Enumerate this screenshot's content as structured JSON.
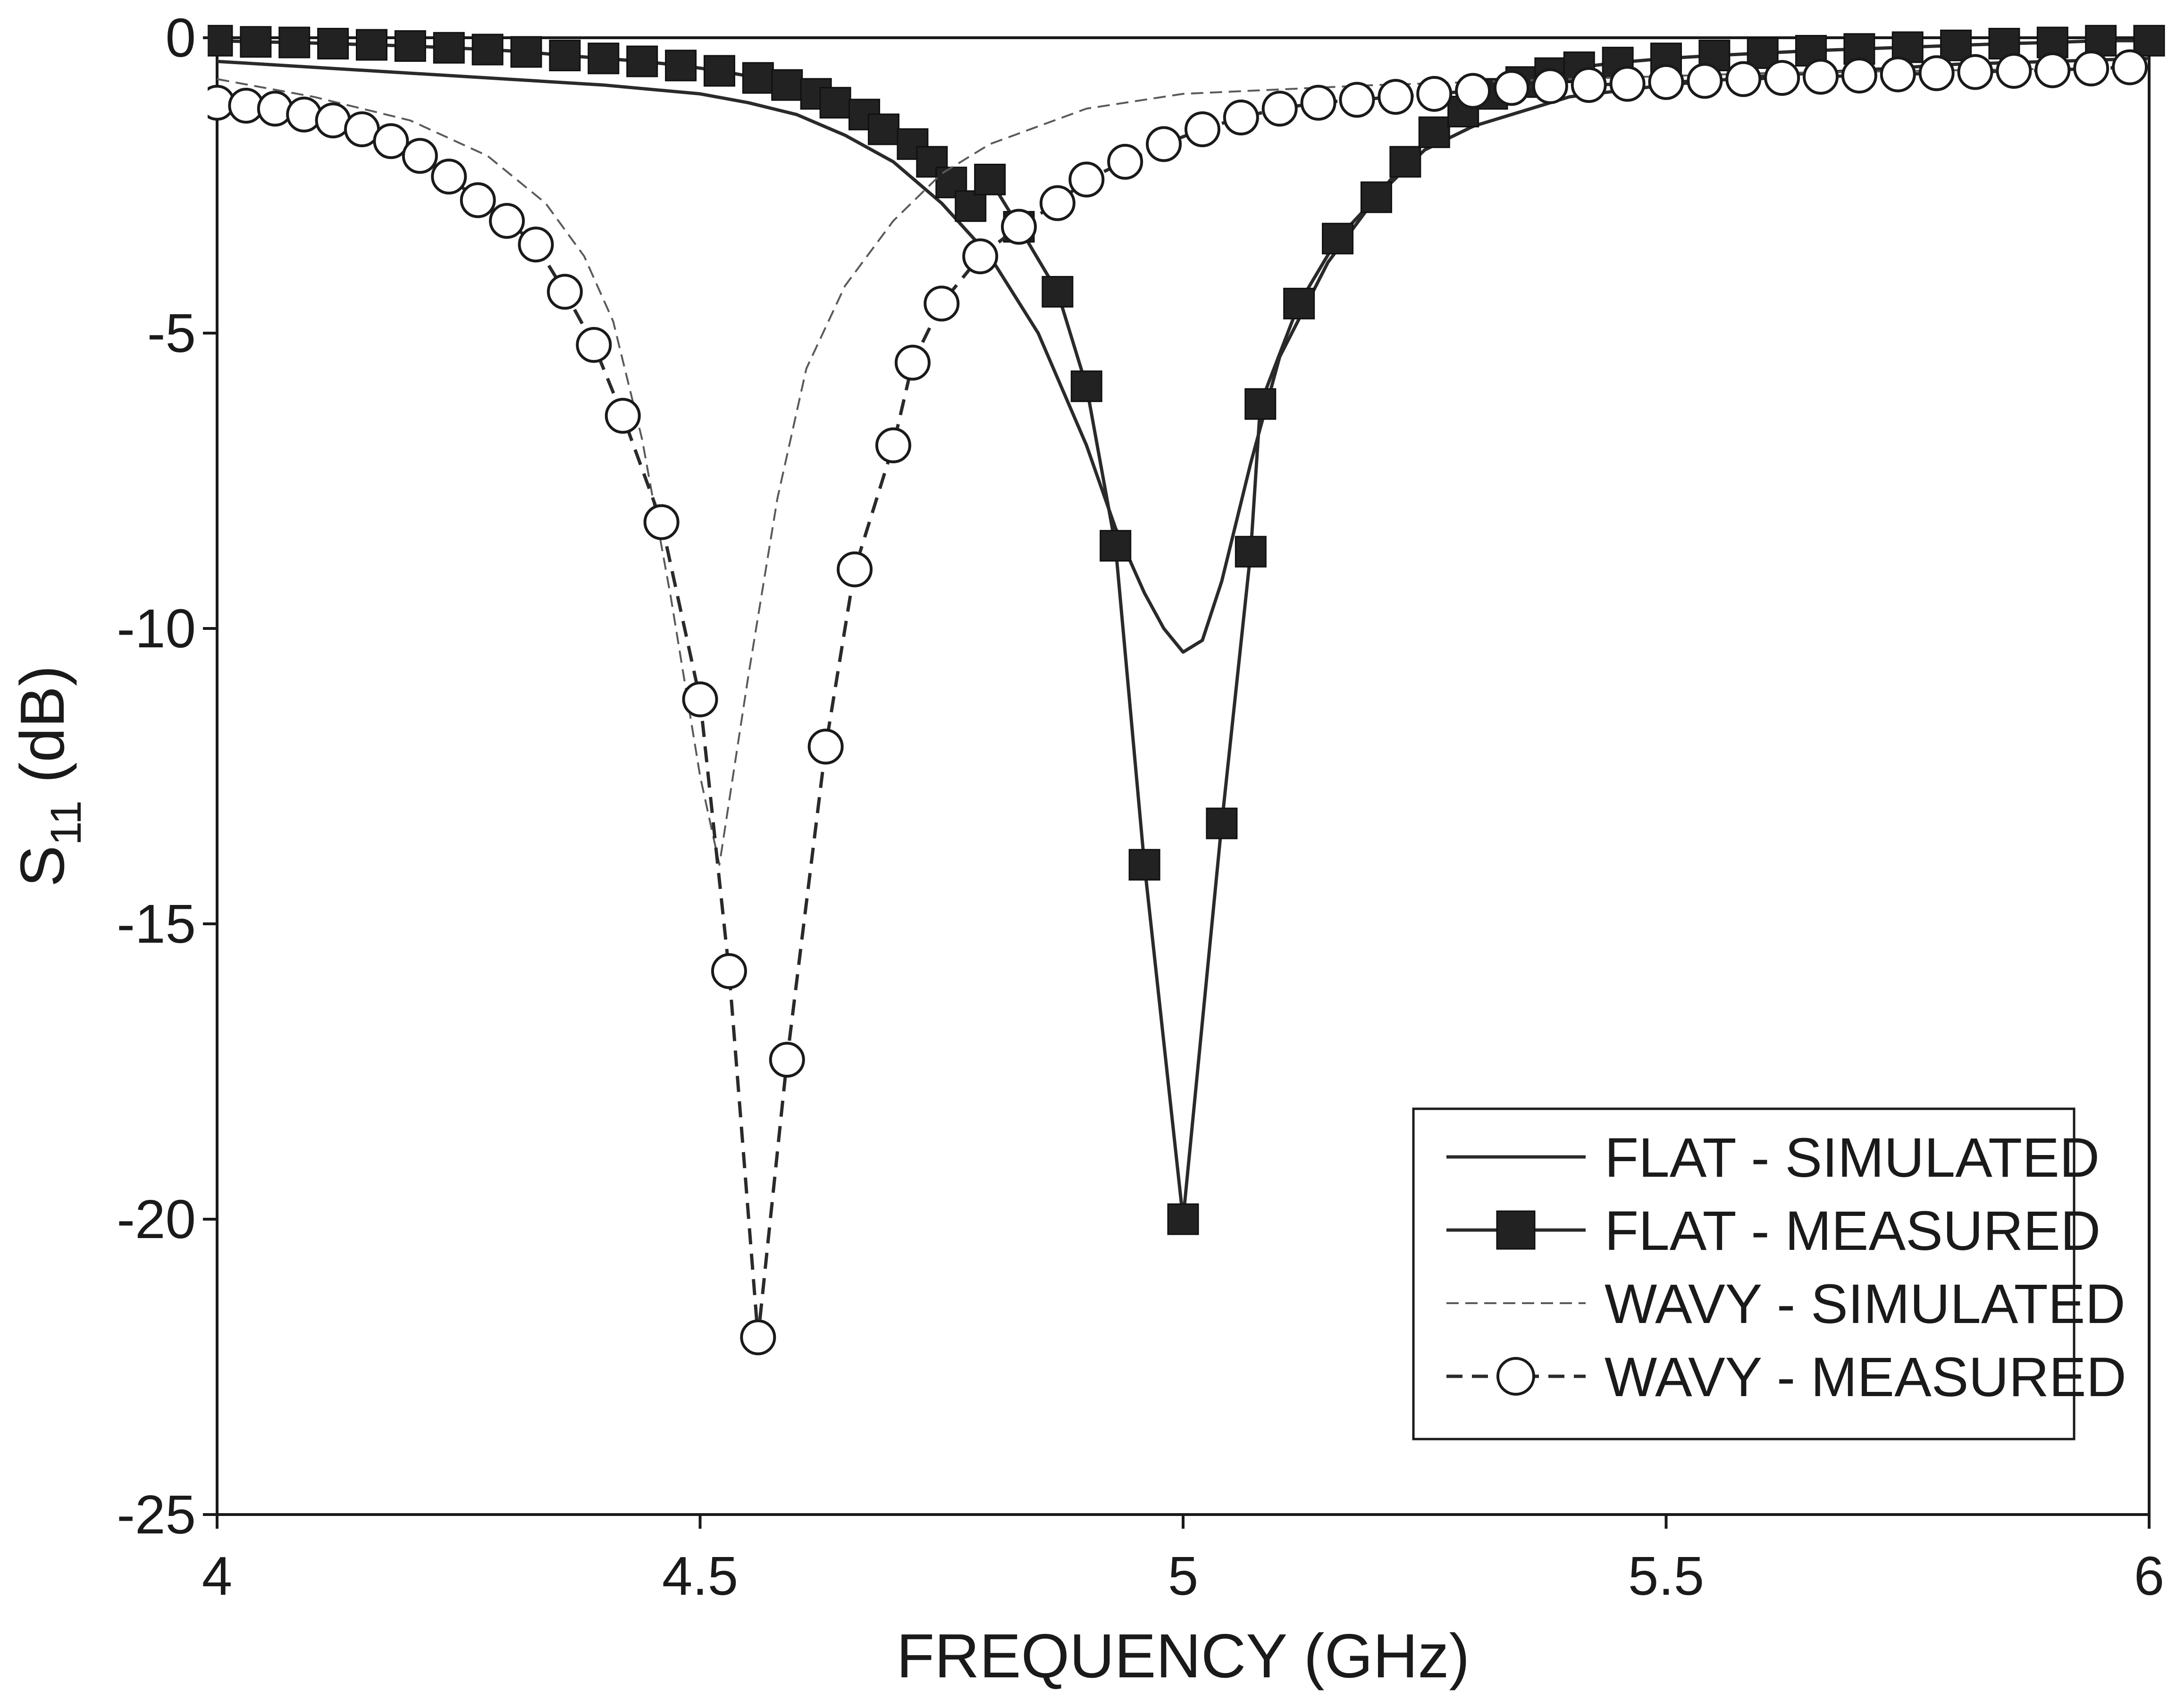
{
  "chart_data": {
    "type": "line",
    "title": "",
    "xlabel": "FREQUENCY (GHz)",
    "ylabel": {
      "main": "S",
      "sub": "11",
      "unit": " (dB)"
    },
    "xlim": [
      4,
      6
    ],
    "ylim": [
      -25,
      0
    ],
    "xticks": [
      4,
      4.5,
      5,
      5.5,
      6
    ],
    "xtick_labels": [
      "4",
      "4.5",
      "5",
      "5.5",
      "6"
    ],
    "yticks": [
      0,
      -5,
      -10,
      -15,
      -20,
      -25
    ],
    "ytick_labels": [
      "0",
      "-5",
      "-10",
      "-15",
      "-20",
      "-25"
    ],
    "grid": false,
    "legend_position": "bottom-right",
    "series": [
      {
        "name": "FLAT - SIMULATED",
        "style": "solid",
        "marker": "none",
        "x": [
          4.0,
          4.1,
          4.2,
          4.3,
          4.4,
          4.5,
          4.55,
          4.6,
          4.65,
          4.7,
          4.75,
          4.8,
          4.85,
          4.9,
          4.93,
          4.96,
          4.98,
          5.0,
          5.02,
          5.04,
          5.07,
          5.1,
          5.15,
          5.2,
          5.25,
          5.3,
          5.4,
          5.5,
          5.6,
          5.7,
          5.8,
          5.9,
          6.0
        ],
        "y": [
          -0.4,
          -0.5,
          -0.6,
          -0.7,
          -0.8,
          -0.95,
          -1.1,
          -1.3,
          -1.65,
          -2.1,
          -2.8,
          -3.7,
          -5.0,
          -6.9,
          -8.3,
          -9.4,
          -10.0,
          -10.4,
          -10.2,
          -9.2,
          -7.2,
          -5.4,
          -3.8,
          -2.7,
          -1.9,
          -1.5,
          -1.0,
          -0.8,
          -0.65,
          -0.55,
          -0.45,
          -0.4,
          -0.35
        ]
      },
      {
        "name": "FLAT - MEASURED",
        "style": "solid",
        "marker": "filled-square",
        "x": [
          4.0,
          4.04,
          4.08,
          4.12,
          4.16,
          4.2,
          4.24,
          4.28,
          4.32,
          4.36,
          4.4,
          4.44,
          4.48,
          4.52,
          4.56,
          4.59,
          4.62,
          4.64,
          4.67,
          4.69,
          4.72,
          4.74,
          4.76,
          4.78,
          4.8,
          4.83,
          4.87,
          4.9,
          4.93,
          4.96,
          5.0,
          5.04,
          5.07,
          5.08,
          5.12,
          5.16,
          5.2,
          5.23,
          5.26,
          5.29,
          5.32,
          5.35,
          5.38,
          5.41,
          5.45,
          5.5,
          5.55,
          5.6,
          5.65,
          5.7,
          5.75,
          5.8,
          5.85,
          5.9,
          5.95,
          6.0
        ],
        "y": [
          -0.05,
          -0.07,
          -0.08,
          -0.1,
          -0.12,
          -0.14,
          -0.17,
          -0.2,
          -0.24,
          -0.3,
          -0.35,
          -0.4,
          -0.47,
          -0.56,
          -0.68,
          -0.8,
          -0.95,
          -1.1,
          -1.3,
          -1.55,
          -1.8,
          -2.1,
          -2.45,
          -2.85,
          -2.4,
          -3.2,
          -4.3,
          -5.9,
          -8.6,
          -14.0,
          -20.0,
          -13.3,
          -8.7,
          -6.2,
          -4.5,
          -3.4,
          -2.7,
          -2.1,
          -1.6,
          -1.25,
          -0.95,
          -0.75,
          -0.6,
          -0.5,
          -0.42,
          -0.35,
          -0.3,
          -0.26,
          -0.22,
          -0.19,
          -0.16,
          -0.13,
          -0.1,
          -0.08,
          -0.05,
          -0.05
        ]
      },
      {
        "name": "WAVY - SIMULATED",
        "style": "dashed-thin",
        "marker": "none",
        "x": [
          4.0,
          4.1,
          4.2,
          4.28,
          4.34,
          4.38,
          4.41,
          4.44,
          4.47,
          4.5,
          4.52,
          4.55,
          4.58,
          4.61,
          4.65,
          4.7,
          4.75,
          4.8,
          4.9,
          5.0,
          5.2,
          5.4,
          5.6,
          5.8,
          6.0
        ],
        "y": [
          -0.7,
          -1.0,
          -1.4,
          -2.0,
          -2.8,
          -3.7,
          -4.8,
          -6.8,
          -9.5,
          -12.5,
          -14.0,
          -10.8,
          -7.8,
          -5.6,
          -4.2,
          -3.1,
          -2.3,
          -1.8,
          -1.2,
          -0.95,
          -0.8,
          -0.7,
          -0.6,
          -0.55,
          -0.5
        ]
      },
      {
        "name": "WAVY - MEASURED",
        "style": "dashed",
        "marker": "open-circle",
        "x": [
          4.0,
          4.03,
          4.06,
          4.09,
          4.12,
          4.15,
          4.18,
          4.21,
          4.24,
          4.27,
          4.3,
          4.33,
          4.36,
          4.39,
          4.42,
          4.46,
          4.5,
          4.53,
          4.56,
          4.59,
          4.63,
          4.66,
          4.7,
          4.72,
          4.75,
          4.79,
          4.83,
          4.87,
          4.9,
          4.94,
          4.98,
          5.02,
          5.06,
          5.1,
          5.14,
          5.18,
          5.22,
          5.26,
          5.3,
          5.34,
          5.38,
          5.42,
          5.46,
          5.5,
          5.54,
          5.58,
          5.62,
          5.66,
          5.7,
          5.74,
          5.78,
          5.82,
          5.86,
          5.9,
          5.94,
          5.98
        ],
        "y": [
          -1.1,
          -1.15,
          -1.2,
          -1.3,
          -1.4,
          -1.55,
          -1.75,
          -2.0,
          -2.35,
          -2.75,
          -3.1,
          -3.5,
          -4.3,
          -5.2,
          -6.4,
          -8.2,
          -11.2,
          -15.8,
          -22.0,
          -17.3,
          -12.0,
          -9.0,
          -6.9,
          -5.5,
          -4.5,
          -3.7,
          -3.2,
          -2.8,
          -2.4,
          -2.1,
          -1.8,
          -1.55,
          -1.35,
          -1.2,
          -1.1,
          -1.05,
          -1.0,
          -0.95,
          -0.9,
          -0.85,
          -0.82,
          -0.8,
          -0.78,
          -0.75,
          -0.73,
          -0.7,
          -0.68,
          -0.66,
          -0.64,
          -0.62,
          -0.6,
          -0.58,
          -0.56,
          -0.55,
          -0.52,
          -0.5
        ]
      }
    ]
  }
}
